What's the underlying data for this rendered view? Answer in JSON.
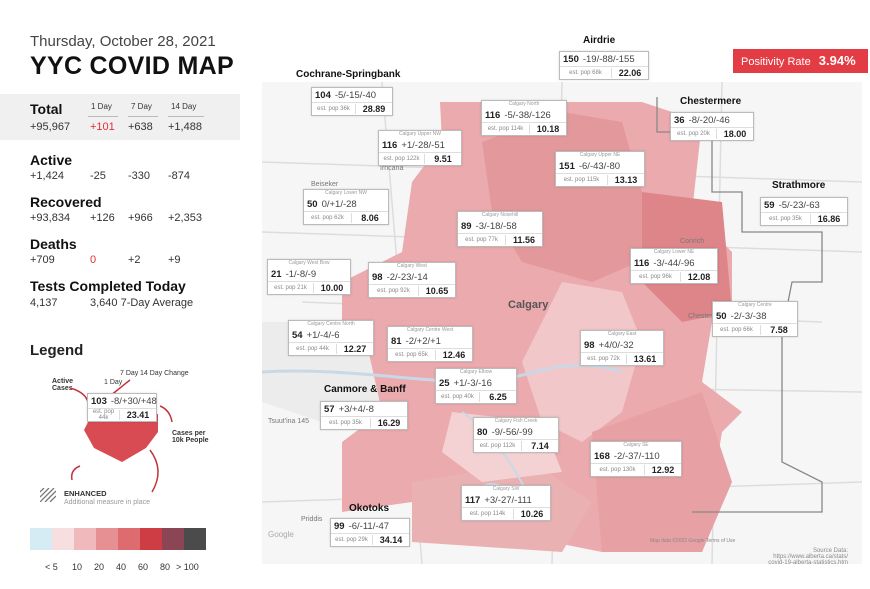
{
  "header": {
    "date": "Thursday, October 28, 2021",
    "title": "YYC COVID MAP"
  },
  "stats": {
    "col_headers": [
      "1 Day",
      "7 Day",
      "14 Day"
    ],
    "total": {
      "label": "Total",
      "value": "+95,967",
      "d1": "+101",
      "d7": "+638",
      "d14": "+1,488"
    },
    "active": {
      "label": "Active",
      "value": "+1,424",
      "d1": "-25",
      "d7": "-330",
      "d14": "-874"
    },
    "recovered": {
      "label": "Recovered",
      "value": "+93,834",
      "d1": "+126",
      "d7": "+966",
      "d14": "+2,353"
    },
    "deaths": {
      "label": "Deaths",
      "value": "+709",
      "d1": "0",
      "d7": "+2",
      "d14": "+9"
    },
    "tests": {
      "label": "Tests Completed Today",
      "value": "4,137",
      "avg": "3,640 7-Day Average"
    }
  },
  "legend": {
    "title": "Legend",
    "labels": {
      "seven_day": "7 Day",
      "fourteen_day": "14 Day Change",
      "one_day": "1 Day",
      "active": "Active\nCases",
      "per10k": "Cases per\n10k People"
    },
    "sample": {
      "active": "103",
      "changes": "-8/+30/+48",
      "pop": "est. pop 44k",
      "rate": "23.41"
    },
    "enhanced": {
      "title": "ENHANCED",
      "sub": "Additional measure in place"
    },
    "scale_colors": [
      "#d6ecf5",
      "#f7dedf",
      "#f0b9bb",
      "#e79094",
      "#de6b70",
      "#cf3d44",
      "#8b4555",
      "#4b4b4b"
    ],
    "scale_labels": [
      "< 5",
      "10",
      "20",
      "40",
      "60",
      "80",
      "> 100"
    ]
  },
  "positivity": {
    "label": "Positivity Rate",
    "value": "3.94%"
  },
  "map": {
    "city_label": "Calgary",
    "town_labels": [
      "Beiseker",
      "Irricana",
      "Conrich",
      "Chestermere",
      "Priddis",
      "Tsuut'ina 145"
    ],
    "attribution": "Map data ©2022 Google   Terms of Use",
    "google": "Google"
  },
  "source": {
    "title": "Source Data:",
    "line1": "https://www.alberta.ca/stats/",
    "line2": "covid-19-alberta-statistics.htm"
  },
  "regions": [
    {
      "name": "Airdrie",
      "active": "150",
      "chg": "-19/-88/-155",
      "pop": "est. pop 68k",
      "rate": "22.06"
    },
    {
      "name": "Cochrane-Springbank",
      "active": "104",
      "chg": "-5/-15/-40",
      "pop": "est. pop 36k",
      "rate": "28.89"
    },
    {
      "name": "Chestermere",
      "active": "36",
      "chg": "-8/-20/-46",
      "pop": "est. pop 20k",
      "rate": "18.00"
    },
    {
      "name": "Strathmore",
      "active": "59",
      "chg": "-5/-23/-63",
      "pop": "est. pop 35k",
      "rate": "16.86"
    },
    {
      "name": "Canmore & Banff",
      "active": "57",
      "chg": "+3/+4/-8",
      "pop": "est. pop 35k",
      "rate": "16.29"
    },
    {
      "name": "Okotoks",
      "active": "99",
      "chg": "-6/-11/-47",
      "pop": "est. pop 29k",
      "rate": "34.14"
    }
  ],
  "zones": [
    {
      "name": "Calgary North",
      "active": "116",
      "chg": "-5/-38/-126",
      "pop": "est. pop 114k",
      "rate": "10.18"
    },
    {
      "name": "Calgary Upper NW",
      "active": "116",
      "chg": "+1/-28/-51",
      "pop": "est. pop 122k",
      "rate": "9.51"
    },
    {
      "name": "Calgary Upper NE",
      "active": "151",
      "chg": "-6/-43/-80",
      "pop": "est. pop 115k",
      "rate": "13.13"
    },
    {
      "name": "Calgary Lower NW",
      "active": "50",
      "chg": "0/+1/-28",
      "pop": "est. pop 62k",
      "rate": "8.06"
    },
    {
      "name": "Calgary Nosehill",
      "active": "89",
      "chg": "-3/-18/-58",
      "pop": "est. pop 77k",
      "rate": "11.56"
    },
    {
      "name": "Calgary Lower NE",
      "active": "116",
      "chg": "-3/-44/-96",
      "pop": "est. pop 96k",
      "rate": "12.08"
    },
    {
      "name": "Calgary West Bow",
      "active": "21",
      "chg": "-1/-8/-9",
      "pop": "est. pop 21k",
      "rate": "10.00"
    },
    {
      "name": "Calgary West",
      "active": "98",
      "chg": "-2/-23/-14",
      "pop": "est. pop 92k",
      "rate": "10.65"
    },
    {
      "name": "Calgary Centre",
      "active": "50",
      "chg": "-2/-3/-38",
      "pop": "est. pop 66k",
      "rate": "7.58"
    },
    {
      "name": "Calgary Centre North",
      "active": "54",
      "chg": "+1/-4/-6",
      "pop": "est. pop 44k",
      "rate": "12.27"
    },
    {
      "name": "Calgary Centre West",
      "active": "81",
      "chg": "-2/+2/+1",
      "pop": "est. pop 65k",
      "rate": "12.46"
    },
    {
      "name": "Calgary East",
      "active": "98",
      "chg": "+4/0/-32",
      "pop": "est. pop 72k",
      "rate": "13.61"
    },
    {
      "name": "Calgary Elbow",
      "active": "25",
      "chg": "+1/-3/-16",
      "pop": "est. pop 40k",
      "rate": "6.25"
    },
    {
      "name": "Calgary Fish Creek",
      "active": "80",
      "chg": "-9/-56/-99",
      "pop": "est. pop 112k",
      "rate": "7.14"
    },
    {
      "name": "Calgary SE",
      "active": "168",
      "chg": "-2/-37/-110",
      "pop": "est. pop 130k",
      "rate": "12.92"
    },
    {
      "name": "Calgary SW",
      "active": "117",
      "chg": "+3/-27/-111",
      "pop": "est. pop 114k",
      "rate": "10.26"
    }
  ]
}
